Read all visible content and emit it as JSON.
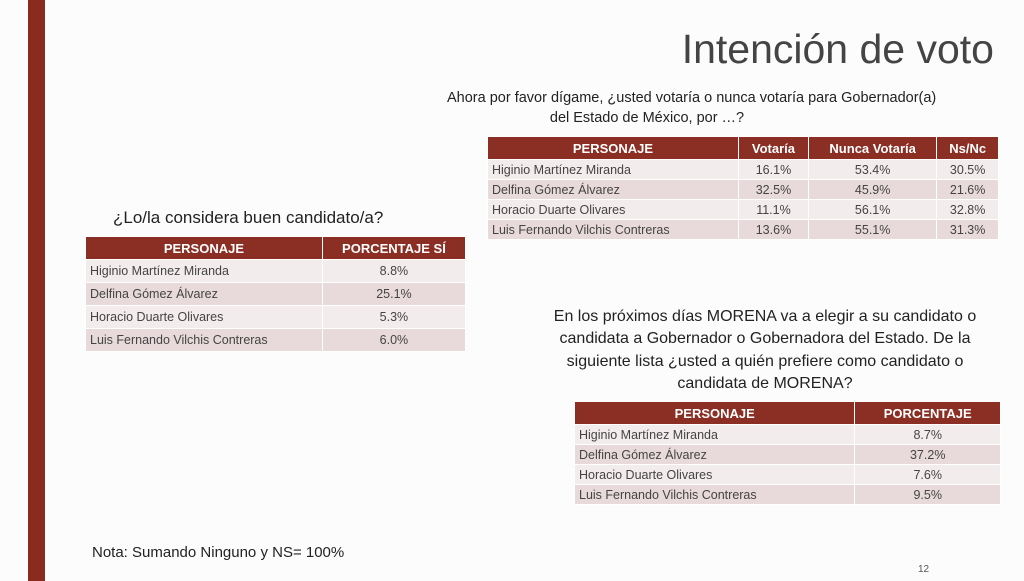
{
  "header": {
    "title": "Intención de voto"
  },
  "question_1": [
    "Ahora por favor dígame, ¿usted votaría o nunca votaría para Gobernador(a)",
    "del Estado de México, por …?"
  ],
  "table_1": {
    "columns": [
      "PERSONAJE",
      "Votaría",
      "Nunca Votaría",
      "Ns/Nc"
    ],
    "rows": [
      [
        "Higinio Martínez Miranda",
        "16.1%",
        "53.4%",
        "30.5%"
      ],
      [
        "Delfina Gómez Álvarez",
        "32.5%",
        "45.9%",
        "21.6%"
      ],
      [
        "Horacio Duarte Olivares",
        "11.1%",
        "56.1%",
        "32.8%"
      ],
      [
        "Luis Fernando Vilchis Contreras",
        "13.6%",
        "55.1%",
        "31.3%"
      ]
    ]
  },
  "question_2": [
    "¿Lo/la considera buen candidato/a?"
  ],
  "table_2": {
    "columns": [
      "PERSONAJE",
      "PORCENTAJE SÍ"
    ],
    "rows": [
      [
        "Higinio Martínez Miranda",
        "8.8%"
      ],
      [
        "Delfina Gómez Álvarez",
        "25.1%"
      ],
      [
        "Horacio Duarte Olivares",
        "5.3%"
      ],
      [
        "Luis Fernando Vilchis Contreras",
        "6.0%"
      ]
    ]
  },
  "question_3": [
    "En los próximos días MORENA va a elegir a su candidato o",
    "candidata a Gobernador o Gobernadora del Estado.  De la",
    "siguiente lista ¿usted a quién prefiere como candidato o",
    "candidata de MORENA?"
  ],
  "table_3": {
    "columns": [
      "PERSONAJE",
      "PORCENTAJE"
    ],
    "rows": [
      [
        "Higinio Martínez Miranda",
        "8.7%"
      ],
      [
        "Delfina Gómez Álvarez",
        "37.2%"
      ],
      [
        "Horacio Duarte Olivares",
        "7.6%"
      ],
      [
        "Luis Fernando Vilchis Contreras",
        "9.5%"
      ]
    ]
  },
  "footer": {
    "note": "Nota: Sumando Ninguno y NS= 100%",
    "page_number": "12"
  }
}
